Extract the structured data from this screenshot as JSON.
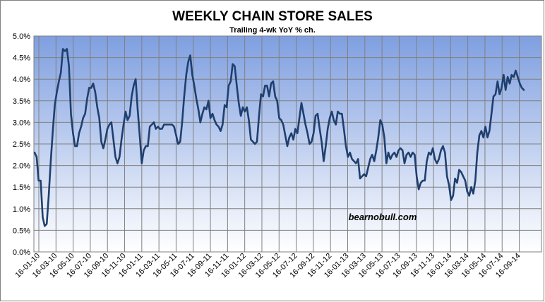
{
  "chart_data": {
    "type": "line",
    "title": "WEEKLY CHAIN STORE SALES",
    "subtitle": "Trailing 4-wk YoY % ch.",
    "annotation": "bearnobull.com",
    "xlabel": "",
    "ylabel": "",
    "ylim": [
      0,
      5
    ],
    "y_ticks": [
      "0.0%",
      "0.5%",
      "1.0%",
      "1.5%",
      "2.0%",
      "2.5%",
      "3.0%",
      "3.5%",
      "4.0%",
      "4.5%",
      "5.0%"
    ],
    "x_ticks": [
      "16-01-10",
      "16-03-10",
      "16-05-10",
      "16-07-10",
      "16-09-10",
      "16-11-10",
      "16-01-11",
      "16-03-11",
      "16-05-11",
      "16-07-11",
      "16-09-11",
      "16-11-11",
      "16-01-12",
      "16-03-12",
      "16-05-12",
      "16-07-12",
      "16-09-12",
      "16-11-12",
      "16-01-13",
      "16-03-13",
      "16-05-13",
      "16-07-13",
      "16-09-13",
      "16-11-13",
      "16-01-14",
      "16-03-14",
      "16-05-14",
      "16-07-14",
      "16-09-14"
    ],
    "grid": true,
    "line_color": "#1f3f6e",
    "plot_gradient_top": "#7f9fe0",
    "plot_gradient_bottom": "#ffffff",
    "series": [
      {
        "values": [
          2.3,
          2.2,
          1.65,
          1.65,
          0.8,
          0.6,
          0.65,
          1.3,
          2.1,
          2.8,
          3.4,
          3.7,
          3.95,
          4.15,
          4.7,
          4.65,
          4.7,
          4.3,
          3.2,
          2.75,
          2.45,
          2.45,
          2.75,
          2.9,
          3.1,
          3.2,
          3.55,
          3.8,
          3.8,
          3.9,
          3.7,
          3.35,
          3.1,
          2.55,
          2.4,
          2.6,
          2.85,
          2.95,
          3.0,
          2.6,
          2.2,
          2.05,
          2.2,
          2.6,
          2.95,
          3.25,
          3.05,
          3.15,
          3.6,
          3.85,
          4.0,
          3.3,
          2.7,
          2.05,
          2.35,
          2.45,
          2.45,
          2.9,
          2.95,
          3.0,
          2.85,
          2.9,
          2.85,
          2.85,
          2.95,
          2.95,
          2.95,
          2.95,
          2.95,
          2.9,
          2.7,
          2.5,
          2.55,
          3.0,
          3.6,
          4.1,
          4.4,
          4.55,
          4.1,
          3.85,
          3.55,
          3.3,
          3.0,
          3.2,
          3.35,
          3.3,
          3.5,
          3.1,
          3.2,
          3.05,
          2.95,
          2.9,
          2.8,
          2.95,
          3.4,
          3.35,
          3.85,
          3.95,
          4.35,
          4.3,
          3.85,
          3.45,
          3.15,
          3.35,
          3.25,
          3.35,
          3.05,
          2.6,
          2.55,
          2.5,
          2.55,
          3.15,
          3.65,
          3.6,
          3.85,
          3.85,
          3.6,
          3.9,
          3.95,
          3.6,
          3.5,
          3.1,
          3.05,
          2.95,
          2.7,
          2.45,
          2.65,
          2.75,
          2.6,
          2.85,
          2.75,
          3.1,
          3.45,
          3.2,
          2.95,
          2.75,
          2.5,
          2.55,
          2.75,
          3.15,
          3.2,
          2.85,
          2.55,
          2.1,
          2.45,
          2.85,
          3.1,
          3.25,
          3.05,
          2.95,
          3.25,
          3.2,
          3.2,
          2.85,
          2.45,
          2.2,
          2.3,
          2.15,
          2.1,
          2.05,
          2.15,
          1.7,
          1.75,
          1.8,
          1.75,
          1.95,
          2.15,
          2.25,
          2.1,
          2.35,
          2.65,
          3.05,
          2.95,
          2.65,
          2.05,
          2.3,
          2.15,
          2.25,
          2.3,
          2.2,
          2.35,
          2.4,
          2.35,
          2.05,
          2.25,
          2.3,
          2.2,
          2.3,
          2.25,
          1.75,
          1.45,
          1.6,
          1.65,
          1.65,
          2.1,
          2.3,
          2.25,
          2.4,
          2.15,
          2.05,
          2.15,
          2.35,
          2.45,
          2.3,
          1.75,
          1.55,
          1.2,
          1.3,
          1.7,
          1.6,
          1.9,
          1.85,
          1.75,
          1.65,
          1.4,
          1.3,
          1.5,
          1.35,
          1.65,
          2.3,
          2.7,
          2.8,
          2.65,
          2.9,
          2.65,
          2.8,
          3.2,
          3.6,
          3.65,
          3.95,
          3.65,
          3.8,
          4.1,
          3.75,
          4.05,
          3.9,
          4.1,
          4.05,
          4.2,
          4.05,
          3.9,
          3.8,
          3.75
        ]
      }
    ]
  }
}
